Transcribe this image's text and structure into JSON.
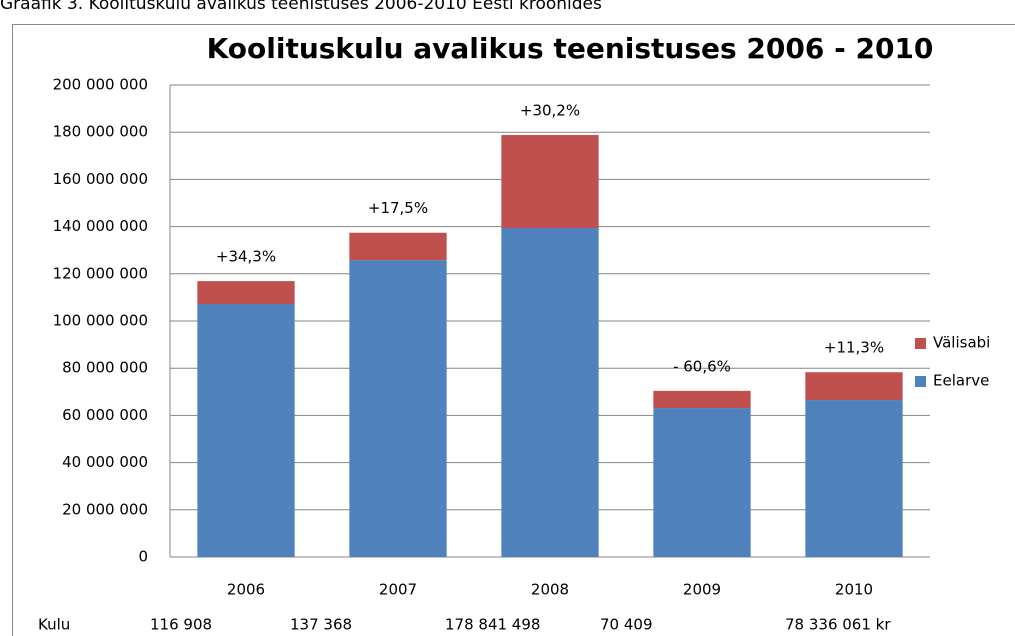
{
  "chart_data": {
    "type": "stacked_bar",
    "caption": "Graafik 3. Koolituskulu avalikus teenistuses 2006-2010 Eesti kroonides",
    "title": "Koolituskulu avalikus teenistuses 2006 - 2010",
    "categories": [
      "2006",
      "2007",
      "2008",
      "2009",
      "2010"
    ],
    "series": [
      {
        "name": "Eelarve",
        "color": "#4f81bd",
        "values": [
          107200000,
          125800000,
          139400000,
          63100000,
          66500000
        ]
      },
      {
        "name": "Välisabi",
        "color": "#c0504d",
        "values": [
          9700000,
          11600000,
          39400000,
          7300000,
          11800000
        ]
      }
    ],
    "annotations": [
      "+34,3%",
      "+17,5%",
      "+30,2%",
      "- 60,6%",
      "+11,3%"
    ],
    "row_label": "Kulu",
    "row_values": [
      "116 908",
      "137 368",
      "178 841 498",
      "70 409",
      "78 336 061 kr"
    ],
    "ylim": [
      0,
      200000000
    ],
    "yticks": [
      0,
      {
        "value": 20000000,
        "label": "20 000 000"
      },
      {
        "value": 40000000,
        "label": "40 000 000"
      },
      {
        "value": 60000000,
        "label": "60 000 000"
      },
      {
        "value": 80000000,
        "label": "80 000 000"
      },
      {
        "value": 100000000,
        "label": "100 000 000"
      },
      {
        "value": 120000000,
        "label": "120 000 000"
      },
      {
        "value": 140000000,
        "label": "140 000 000"
      },
      {
        "value": 160000000,
        "label": "160 000 000"
      },
      {
        "value": 180000000,
        "label": "180 000 000"
      },
      {
        "value": 200000000,
        "label": "200 000 000"
      }
    ],
    "grid": true,
    "legend": "right"
  }
}
